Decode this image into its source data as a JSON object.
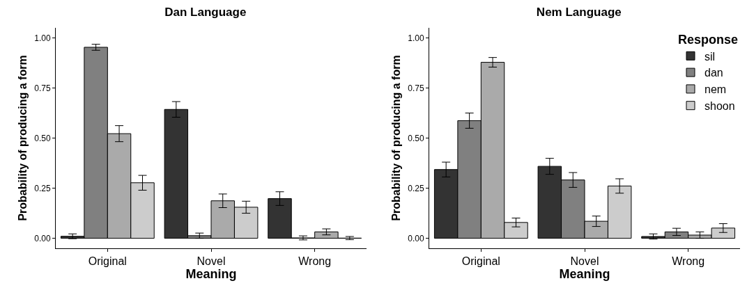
{
  "chart_data": [
    {
      "type": "bar",
      "title": "Dan Language",
      "xlabel": "Meaning",
      "ylabel": "Probability of producing a form",
      "categories": [
        "Original",
        "Novel",
        "Wrong"
      ],
      "ylim": [
        -0.05,
        1.05
      ],
      "yticks": [
        {
          "value": 0,
          "label": "0.00"
        },
        {
          "value": 0.25,
          "label": "0.25"
        },
        {
          "value": 0.5,
          "label": "0.50"
        },
        {
          "value": 0.75,
          "label": "0.75"
        },
        {
          "value": 1,
          "label": "1.00"
        }
      ],
      "grid": false,
      "legend": false,
      "series": [
        {
          "color": "#333333",
          "values": [
            0.01,
            0.643,
            0.198
          ],
          "errors": [
            0.012,
            0.039,
            0.034
          ]
        },
        {
          "color": "#808080",
          "values": [
            0.953,
            0.013,
            0.002
          ],
          "errors": [
            0.015,
            0.013,
            0.01
          ]
        },
        {
          "color": "#aaaaaa",
          "values": [
            0.522,
            0.187,
            0.032
          ],
          "errors": [
            0.04,
            0.034,
            0.015
          ]
        },
        {
          "color": "#cccccc",
          "values": [
            0.277,
            0.155,
            0.001
          ],
          "errors": [
            0.037,
            0.03,
            0.008
          ]
        }
      ]
    },
    {
      "type": "bar",
      "title": "Nem Language",
      "xlabel": "Meaning",
      "ylabel": "Probability of producing a form",
      "legend_title": "Response",
      "categories": [
        "Original",
        "Novel",
        "Wrong"
      ],
      "ylim": [
        -0.05,
        1.05
      ],
      "yticks": [
        {
          "value": 0,
          "label": "0.00"
        },
        {
          "value": 0.25,
          "label": "0.25"
        },
        {
          "value": 0.5,
          "label": "0.50"
        },
        {
          "value": 0.75,
          "label": "0.75"
        },
        {
          "value": 1,
          "label": "1.00"
        }
      ],
      "grid": false,
      "legend": "top right",
      "series": [
        {
          "name": "sil",
          "color": "#333333",
          "values": [
            0.343,
            0.359,
            0.009
          ],
          "errors": [
            0.037,
            0.04,
            0.013
          ]
        },
        {
          "name": "dan",
          "color": "#808080",
          "values": [
            0.587,
            0.291,
            0.032
          ],
          "errors": [
            0.038,
            0.037,
            0.018
          ]
        },
        {
          "name": "nem",
          "color": "#aaaaaa",
          "values": [
            0.878,
            0.085,
            0.016
          ],
          "errors": [
            0.024,
            0.026,
            0.016
          ]
        },
        {
          "name": "shoon",
          "color": "#cccccc",
          "values": [
            0.079,
            0.261,
            0.051
          ],
          "errors": [
            0.022,
            0.036,
            0.022
          ]
        }
      ]
    }
  ]
}
